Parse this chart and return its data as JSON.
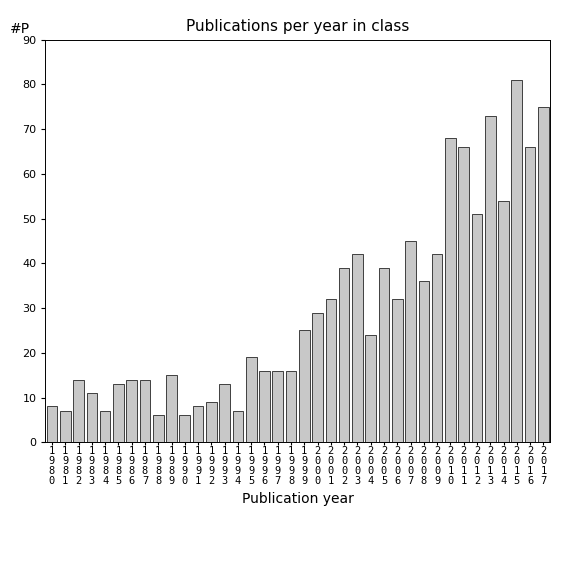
{
  "title": "Publications per year in class",
  "xlabel": "Publication year",
  "ylabel": "#P",
  "years": [
    "1980",
    "1981",
    "1982",
    "1983",
    "1984",
    "1985",
    "1986",
    "1987",
    "1988",
    "1989",
    "1990",
    "1991",
    "1992",
    "1993",
    "1994",
    "1995",
    "1996",
    "1997",
    "1998",
    "1999",
    "2000",
    "2001",
    "2002",
    "2003",
    "2004",
    "2005",
    "2006",
    "2007",
    "2008",
    "2009",
    "2010",
    "2011",
    "2012",
    "2013",
    "2014",
    "2015",
    "2016",
    "2017"
  ],
  "values": [
    8,
    7,
    14,
    11,
    7,
    13,
    14,
    14,
    6,
    15,
    6,
    8,
    9,
    13,
    7,
    19,
    16,
    16,
    16,
    25,
    29,
    32,
    39,
    42,
    24,
    39,
    32,
    45,
    36,
    42,
    68,
    66,
    51,
    73,
    54,
    81,
    66,
    75
  ],
  "bar_color": "#c8c8c8",
  "bar_edgecolor": "#000000",
  "ylim": [
    0,
    90
  ],
  "yticks": [
    0,
    10,
    20,
    30,
    40,
    50,
    60,
    70,
    80,
    90
  ],
  "background_color": "#ffffff",
  "title_fontsize": 11,
  "xlabel_fontsize": 10,
  "tick_fontsize": 7.5
}
